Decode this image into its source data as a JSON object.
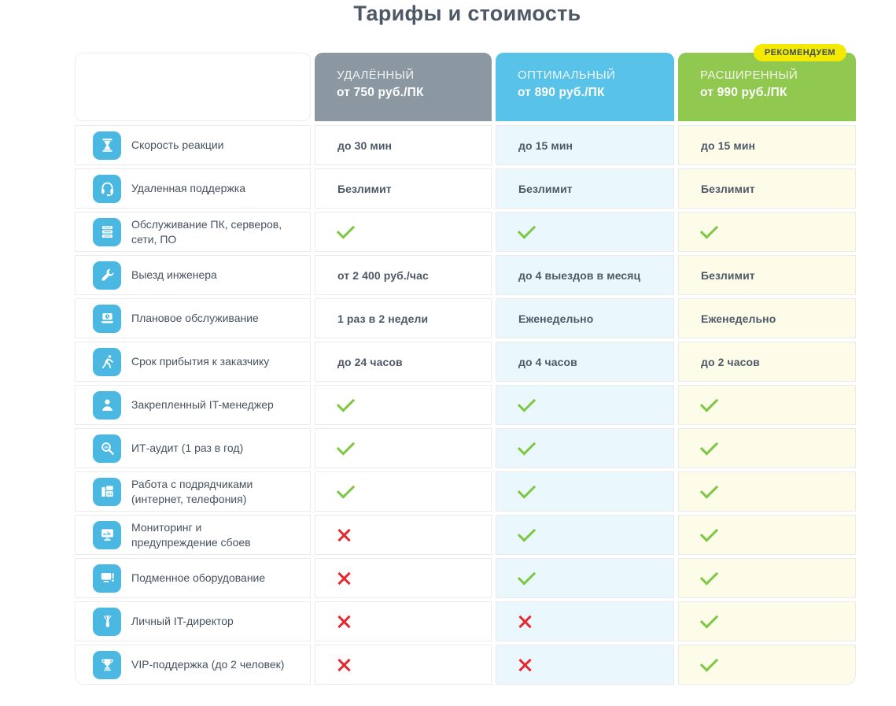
{
  "title": "Тарифы и стоимость",
  "badge": {
    "label": "РЕКОМЕНДУЕМ"
  },
  "plans": [
    {
      "name": "УДАЛЁННЫЙ",
      "price": "от 750 руб./ПК"
    },
    {
      "name": "ОПТИМАЛЬНЫЙ",
      "price": "от 890 руб./ПК"
    },
    {
      "name": "РАСШИРЕННЫЙ",
      "price": "от 990 руб./ПК",
      "recommended": true
    }
  ],
  "colors": {
    "title-color": "#4d5966",
    "plan-gray": "#8b97a1",
    "plan-blue": "#58c2e8",
    "plan-green": "#91c950",
    "badge-bg": "#f3ea00",
    "badge-text": "#3e4d5d",
    "icon-bg": "#4bb8e2",
    "tint-blue": "#eaf7fd",
    "tint-yellow": "#fdfce9",
    "check-green": "#7cc842",
    "cross-red": "#e42a2e"
  },
  "rows": [
    {
      "icon": "hourglass-icon",
      "label": "Скорость реакции",
      "values": [
        {
          "type": "text",
          "text": "до 30 мин"
        },
        {
          "type": "text",
          "text": "до 15 мин"
        },
        {
          "type": "text",
          "text": "до 15 мин"
        }
      ]
    },
    {
      "icon": "headset-icon",
      "label": "Удаленная поддержка",
      "values": [
        {
          "type": "text",
          "text": "Безлимит"
        },
        {
          "type": "text",
          "text": "Безлимит"
        },
        {
          "type": "text",
          "text": "Безлимит"
        }
      ]
    },
    {
      "icon": "servers-icon",
      "label": "Обслуживание ПК, серверов,\nсети, ПО",
      "values": [
        {
          "type": "check"
        },
        {
          "type": "check"
        },
        {
          "type": "check"
        }
      ]
    },
    {
      "icon": "wrench-hand-icon",
      "label": "Выезд инженера",
      "values": [
        {
          "type": "text",
          "text": "от 2 400 руб./час"
        },
        {
          "type": "text",
          "text": "до 4 выездов в месяц"
        },
        {
          "type": "text",
          "text": "Безлимит"
        }
      ]
    },
    {
      "icon": "laptop-clock-icon",
      "label": "Плановое обслуживание",
      "values": [
        {
          "type": "text",
          "text": "1 раз в 2 недели"
        },
        {
          "type": "text",
          "text": "Еженедельно"
        },
        {
          "type": "text",
          "text": "Еженедельно"
        }
      ]
    },
    {
      "icon": "runner-icon",
      "label": "Срок прибытия к заказчику",
      "values": [
        {
          "type": "text",
          "text": "до 24 часов"
        },
        {
          "type": "text",
          "text": "до 4 часов"
        },
        {
          "type": "text",
          "text": "до 2 часов"
        }
      ]
    },
    {
      "icon": "manager-icon",
      "label": "Закрепленный IT-менеджер",
      "values": [
        {
          "type": "check"
        },
        {
          "type": "check"
        },
        {
          "type": "check"
        }
      ]
    },
    {
      "icon": "audit-magnifier-icon",
      "label": "ИТ-аудит (1 раз в год)",
      "values": [
        {
          "type": "check"
        },
        {
          "type": "check"
        },
        {
          "type": "check"
        }
      ]
    },
    {
      "icon": "fax-phone-icon",
      "label": "Работа с подрядчиками\n(интернет, телефония)",
      "values": [
        {
          "type": "check"
        },
        {
          "type": "check"
        },
        {
          "type": "check"
        }
      ]
    },
    {
      "icon": "monitoring-icon",
      "label": "Мониторинг и\nпредупреждение сбоев",
      "values": [
        {
          "type": "cross"
        },
        {
          "type": "check"
        },
        {
          "type": "check"
        }
      ]
    },
    {
      "icon": "replacement-equipment-icon",
      "label": "Подменное оборудование",
      "values": [
        {
          "type": "cross"
        },
        {
          "type": "check"
        },
        {
          "type": "check"
        }
      ]
    },
    {
      "icon": "tie-icon",
      "label": "Личный IT-директор",
      "values": [
        {
          "type": "cross"
        },
        {
          "type": "cross"
        },
        {
          "type": "check"
        }
      ]
    },
    {
      "icon": "trophy-icon",
      "label": "VIP-поддержка (до 2 человек)",
      "values": [
        {
          "type": "cross"
        },
        {
          "type": "cross"
        },
        {
          "type": "check"
        }
      ]
    }
  ]
}
